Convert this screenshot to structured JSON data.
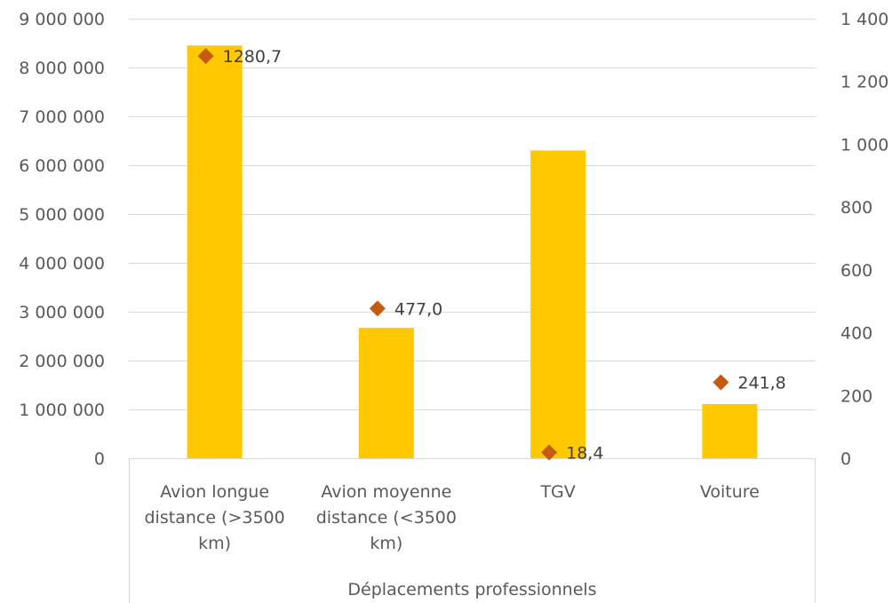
{
  "chart_data": {
    "type": "bar",
    "categories": [
      [
        "Avion longue",
        "distance (>3500",
        "km)"
      ],
      [
        "Avion moyenne",
        "distance (<3500",
        "km)"
      ],
      [
        "TGV"
      ],
      [
        "Voiture"
      ]
    ],
    "group_label": "Déplacements professionnels",
    "series": [
      {
        "name": "",
        "type": "bar",
        "axis": "left",
        "color": "#FFC800",
        "values": [
          8450000,
          2670000,
          6300000,
          1110000
        ]
      },
      {
        "name": "",
        "type": "scatter",
        "axis": "right",
        "color": "#C55A11",
        "values": [
          1280.7,
          477.0,
          18.4,
          241.8
        ],
        "labels": [
          "1280,7",
          "477,0",
          "18,4",
          "241,8"
        ]
      }
    ],
    "y_left": {
      "lim": [
        0,
        9000000
      ],
      "ticks": [
        0,
        1000000,
        2000000,
        3000000,
        4000000,
        5000000,
        6000000,
        7000000,
        8000000,
        9000000
      ],
      "tick_labels": [
        "0",
        "1 000 000",
        "2 000 000",
        "3 000 000",
        "4 000 000",
        "5 000 000",
        "6 000 000",
        "7 000 000",
        "8 000 000",
        "9 000 000"
      ]
    },
    "y_right": {
      "lim": [
        0,
        1400
      ],
      "ticks": [
        0,
        200,
        400,
        600,
        800,
        1000,
        1200,
        1400
      ],
      "tick_labels": [
        "0",
        "200",
        "400",
        "600",
        "800",
        "1 000",
        "1 200",
        "1 400"
      ]
    },
    "grid": true,
    "legend": "none"
  }
}
